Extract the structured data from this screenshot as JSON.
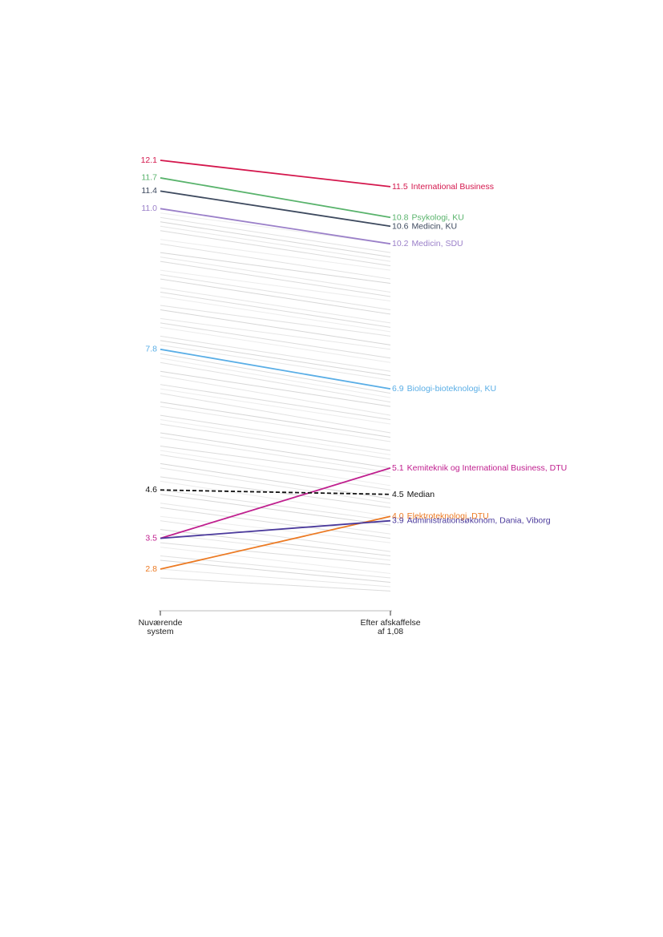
{
  "chart_data": {
    "type": "slope",
    "categories": [
      [
        "Nuværende",
        "system"
      ],
      [
        "Efter afskaffelse",
        "af 1,08"
      ]
    ],
    "other_lines": {
      "color": "#c8c8c8",
      "values": [
        [
          10.9,
          10.2
        ],
        [
          10.8,
          10.0
        ],
        [
          10.7,
          9.9
        ],
        [
          10.6,
          9.8
        ],
        [
          10.5,
          9.7
        ],
        [
          10.3,
          9.6
        ],
        [
          10.2,
          9.4
        ],
        [
          10.0,
          9.3
        ],
        [
          9.9,
          9.1
        ],
        [
          9.8,
          9.0
        ],
        [
          9.6,
          8.9
        ],
        [
          9.5,
          8.7
        ],
        [
          9.4,
          8.6
        ],
        [
          9.2,
          8.4
        ],
        [
          9.1,
          8.3
        ],
        [
          9.0,
          8.2
        ],
        [
          8.8,
          8.1
        ],
        [
          8.7,
          7.9
        ],
        [
          8.5,
          7.8
        ],
        [
          8.4,
          7.6
        ],
        [
          8.3,
          7.5
        ],
        [
          8.1,
          7.3
        ],
        [
          8.0,
          7.2
        ],
        [
          7.9,
          7.1
        ],
        [
          7.7,
          6.8
        ],
        [
          7.6,
          6.7
        ],
        [
          7.5,
          6.6
        ],
        [
          7.3,
          6.5
        ],
        [
          7.2,
          6.3
        ],
        [
          7.0,
          6.2
        ],
        [
          6.9,
          6.1
        ],
        [
          6.8,
          5.9
        ],
        [
          6.6,
          5.8
        ],
        [
          6.5,
          5.7
        ],
        [
          6.3,
          5.5
        ],
        [
          6.2,
          5.4
        ],
        [
          6.1,
          5.3
        ],
        [
          5.9,
          5.1
        ],
        [
          5.8,
          5.0
        ],
        [
          5.6,
          4.9
        ],
        [
          5.5,
          4.7
        ],
        [
          5.4,
          4.6
        ],
        [
          5.2,
          4.4
        ],
        [
          5.1,
          4.3
        ],
        [
          4.9,
          4.2
        ],
        [
          4.8,
          4.0
        ],
        [
          4.6,
          3.9
        ],
        [
          4.5,
          3.8
        ],
        [
          4.3,
          3.6
        ],
        [
          4.2,
          3.5
        ],
        [
          4.0,
          3.4
        ],
        [
          3.9,
          3.2
        ],
        [
          3.7,
          3.1
        ],
        [
          3.6,
          3.0
        ],
        [
          3.4,
          2.9
        ],
        [
          3.3,
          2.7
        ],
        [
          3.1,
          2.6
        ],
        [
          3.0,
          2.5
        ],
        [
          2.8,
          2.4
        ],
        [
          2.6,
          2.3
        ]
      ]
    },
    "series": [
      {
        "name": "International Business",
        "color": "#d4174d",
        "values": [
          12.1,
          11.5
        ],
        "value_labels": [
          "12.1",
          "11.5"
        ]
      },
      {
        "name": "Psykologi, KU",
        "color": "#59b36c",
        "values": [
          11.7,
          10.8
        ],
        "value_labels": [
          "11.7",
          "10.8"
        ]
      },
      {
        "name": "Medicin, KU",
        "color": "#3e4a5f",
        "values": [
          11.4,
          10.6
        ],
        "value_labels": [
          "11.4",
          "10.6"
        ]
      },
      {
        "name": "Medicin, SDU",
        "color": "#9b80c9",
        "values": [
          11.0,
          10.2
        ],
        "value_labels": [
          "11.0",
          "10.2"
        ]
      },
      {
        "name": "Biologi-bioteknologi, KU",
        "color": "#5aaee6",
        "values": [
          7.8,
          6.9
        ],
        "value_labels": [
          "7.8",
          "6.9"
        ]
      },
      {
        "name": "Kemiteknik og International Business, DTU",
        "color": "#c0208f",
        "values": [
          3.5,
          5.1
        ],
        "value_labels": [
          "3.5",
          "5.1"
        ]
      },
      {
        "name": "Median",
        "color": "#111111",
        "dashed": true,
        "values": [
          4.6,
          4.5
        ],
        "value_labels": [
          "4.6",
          "4.5"
        ]
      },
      {
        "name": "Elektroteknologi, DTU",
        "color": "#ec7a23",
        "values": [
          2.8,
          4.0
        ],
        "value_labels": [
          "2.8",
          "4.0"
        ]
      },
      {
        "name": "Administrationsøkonom, Dania, Viborg",
        "color": "#4b3a9c",
        "values": [
          3.5,
          3.9
        ],
        "value_labels": [
          "3.5",
          "3.9"
        ],
        "hide_left_label": true
      }
    ]
  }
}
